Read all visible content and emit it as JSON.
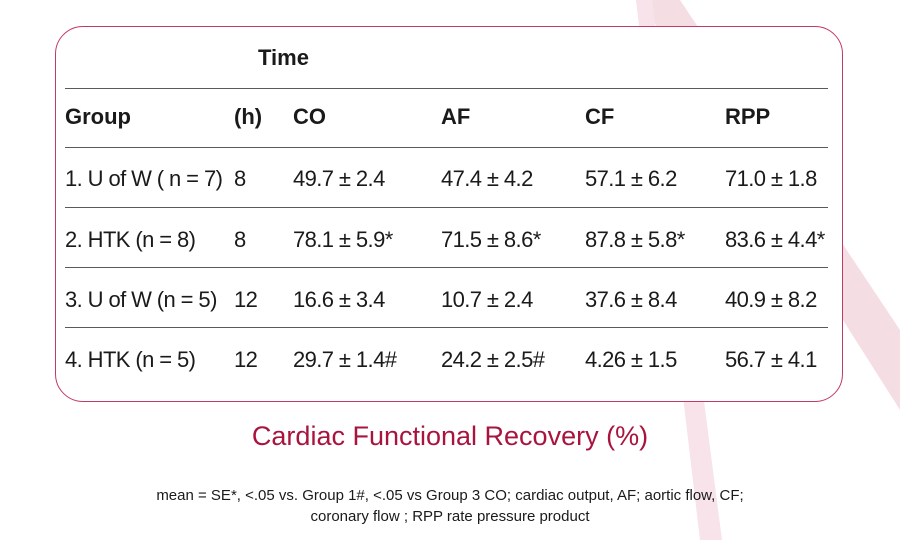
{
  "table": {
    "super_header": "Time",
    "columns": [
      "Group",
      "(h)",
      "CO",
      "AF",
      "CF",
      "RPP"
    ],
    "rows": [
      [
        "1. U of W ( n = 7)",
        "8",
        "49.7 ± 2.4",
        "47.4 ± 4.2",
        "57.1  ± 6.2",
        "71.0  ± 1.8"
      ],
      [
        "2. HTK (n = 8)",
        "8",
        "78.1  ± 5.9*",
        "71.5  ± 8.6*",
        "87.8  ± 5.8*",
        "83.6  ± 4.4*"
      ],
      [
        "3. U of W (n = 5)",
        "12",
        "16.6  ± 3.4",
        "10.7  ± 2.4",
        "37.6  ± 8.4",
        "40.9  ± 8.2"
      ],
      [
        "4. HTK (n = 5)",
        "12",
        "29.7  ± 1.4#",
        "24.2  ± 2.5#",
        "4.26  ± 1.5",
        "56.7  ± 4.1"
      ]
    ]
  },
  "caption": "Cardiac Functional Recovery (%)",
  "footnote": {
    "line1": "mean = SE*, <.05 vs. Group 1#, <.05 vs Group 3 CO; cardiac output, AF; aortic flow, CF;",
    "line2": "coronary flow ; RPP rate pressure product"
  },
  "colors": {
    "accent": "#c13a64",
    "caption": "#a8143e",
    "decor": "#f3d7df"
  }
}
